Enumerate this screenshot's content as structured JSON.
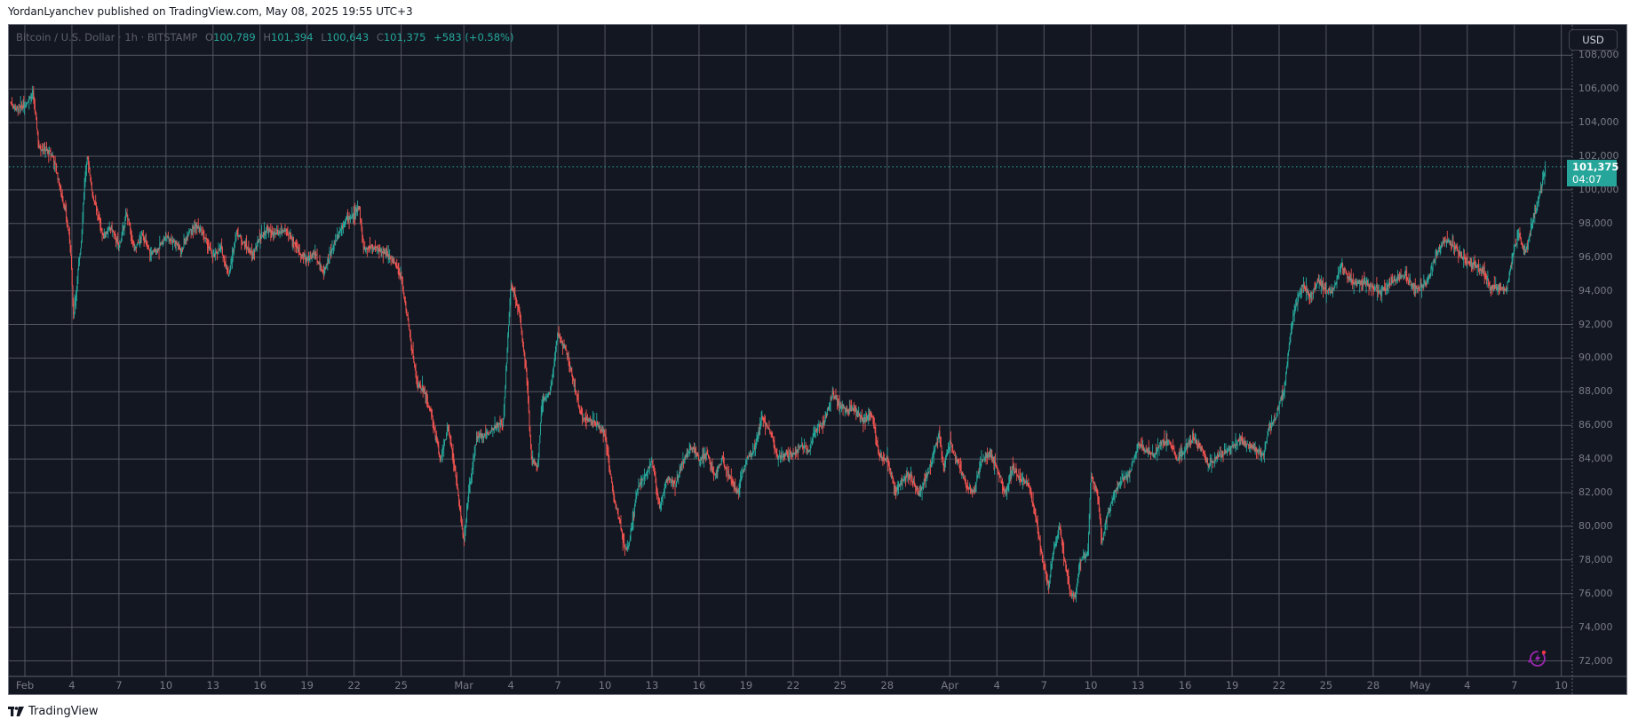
{
  "header": {
    "publisher_line": "YordanLyanchev published on TradingView.com, May 08, 2025 19:55 UTC+3"
  },
  "legend": {
    "symbol": "Bitcoin / U.S. Dollar · 1h · BITSTAMP",
    "open_label": "O",
    "open": "100,789",
    "high_label": "H",
    "high": "101,394",
    "low_label": "L",
    "low": "100,643",
    "close_label": "C",
    "close": "101,375",
    "change": "+583 (+0.58%)"
  },
  "currency_button": "USD",
  "last_price_tag": {
    "price": "101,375",
    "countdown": "04:07"
  },
  "footer": {
    "brand": "TradingView"
  },
  "colors": {
    "background": "#131722",
    "grid": "#5d606b",
    "up": "#26a69a",
    "down": "#ef5350",
    "axis_text": "#787b86",
    "last_price": "#26a69a"
  },
  "chart_data": {
    "type": "candlestick",
    "title": "Bitcoin / U.S. Dollar · 1h · BITSTAMP",
    "xlabel": "",
    "ylabel": "USD",
    "ylim": [
      71500,
      108500
    ],
    "grid": true,
    "y_ticks": [
      "72,000",
      "74,000",
      "76,000",
      "78,000",
      "80,000",
      "82,000",
      "84,000",
      "86,000",
      "88,000",
      "90,000",
      "92,000",
      "94,000",
      "96,000",
      "98,000",
      "100,000",
      "102,000",
      "104,000",
      "106,000",
      "108,000"
    ],
    "x_ticks": [
      {
        "label": "Feb",
        "day": 0
      },
      {
        "label": "4",
        "day": 3
      },
      {
        "label": "7",
        "day": 6
      },
      {
        "label": "10",
        "day": 9
      },
      {
        "label": "13",
        "day": 12
      },
      {
        "label": "16",
        "day": 15
      },
      {
        "label": "19",
        "day": 18
      },
      {
        "label": "22",
        "day": 21
      },
      {
        "label": "25",
        "day": 24
      },
      {
        "label": "Mar",
        "day": 28
      },
      {
        "label": "4",
        "day": 31
      },
      {
        "label": "7",
        "day": 34
      },
      {
        "label": "10",
        "day": 37
      },
      {
        "label": "13",
        "day": 40
      },
      {
        "label": "16",
        "day": 43
      },
      {
        "label": "19",
        "day": 46
      },
      {
        "label": "22",
        "day": 49
      },
      {
        "label": "25",
        "day": 52
      },
      {
        "label": "28",
        "day": 55
      },
      {
        "label": "Apr",
        "day": 59
      },
      {
        "label": "4",
        "day": 62
      },
      {
        "label": "7",
        "day": 65
      },
      {
        "label": "10",
        "day": 68
      },
      {
        "label": "13",
        "day": 71
      },
      {
        "label": "16",
        "day": 74
      },
      {
        "label": "19",
        "day": 77
      },
      {
        "label": "22",
        "day": 80
      },
      {
        "label": "25",
        "day": 83
      },
      {
        "label": "28",
        "day": 86
      },
      {
        "label": "May",
        "day": 89
      },
      {
        "label": "4",
        "day": 92
      },
      {
        "label": "7",
        "day": 95
      },
      {
        "label": "10",
        "day": 98
      }
    ],
    "last_price": 101375,
    "price_path_anchors": [
      [
        -0.9,
        105200
      ],
      [
        -0.5,
        104800
      ],
      [
        0,
        105000
      ],
      [
        0.5,
        105800
      ],
      [
        0.7,
        104300
      ],
      [
        0.9,
        102500
      ],
      [
        1.3,
        102400
      ],
      [
        1.8,
        102000
      ],
      [
        2.2,
        100300
      ],
      [
        2.6,
        98600
      ],
      [
        2.9,
        96800
      ],
      [
        3.1,
        92500
      ],
      [
        3.3,
        94300
      ],
      [
        3.6,
        97000
      ],
      [
        3.8,
        100500
      ],
      [
        4.0,
        102000
      ],
      [
        4.3,
        99800
      ],
      [
        4.6,
        98700
      ],
      [
        5.0,
        97200
      ],
      [
        5.5,
        97800
      ],
      [
        6.0,
        96600
      ],
      [
        6.5,
        98600
      ],
      [
        7.0,
        96400
      ],
      [
        7.5,
        97400
      ],
      [
        8.0,
        96200
      ],
      [
        8.5,
        96500
      ],
      [
        9.0,
        97200
      ],
      [
        9.5,
        97000
      ],
      [
        10.0,
        96400
      ],
      [
        10.5,
        97700
      ],
      [
        11.0,
        97800
      ],
      [
        11.5,
        97100
      ],
      [
        12.0,
        96000
      ],
      [
        12.5,
        96600
      ],
      [
        13.0,
        94900
      ],
      [
        13.5,
        97500
      ],
      [
        14.0,
        96800
      ],
      [
        14.5,
        96100
      ],
      [
        15.0,
        97200
      ],
      [
        15.5,
        97600
      ],
      [
        16.0,
        97300
      ],
      [
        16.5,
        97600
      ],
      [
        17.0,
        97200
      ],
      [
        17.5,
        96300
      ],
      [
        18.0,
        95800
      ],
      [
        18.5,
        96300
      ],
      [
        19.0,
        95000
      ],
      [
        19.5,
        96200
      ],
      [
        20.0,
        97400
      ],
      [
        20.5,
        98300
      ],
      [
        21.0,
        98400
      ],
      [
        21.3,
        99200
      ],
      [
        21.6,
        96500
      ],
      [
        22.0,
        96600
      ],
      [
        22.5,
        96500
      ],
      [
        23.0,
        96200
      ],
      [
        23.5,
        95800
      ],
      [
        24.0,
        94800
      ],
      [
        24.5,
        91800
      ],
      [
        25.0,
        88500
      ],
      [
        25.5,
        88000
      ],
      [
        26.0,
        86300
      ],
      [
        26.5,
        84000
      ],
      [
        27.0,
        85800
      ],
      [
        27.5,
        83000
      ],
      [
        28.0,
        79000
      ],
      [
        28.3,
        82000
      ],
      [
        28.8,
        85200
      ],
      [
        29.5,
        85500
      ],
      [
        30.0,
        86000
      ],
      [
        30.5,
        86000
      ],
      [
        31.0,
        94500
      ],
      [
        31.5,
        93000
      ],
      [
        32.0,
        89000
      ],
      [
        32.3,
        84000
      ],
      [
        32.7,
        83500
      ],
      [
        33.0,
        87500
      ],
      [
        33.5,
        88000
      ],
      [
        34.0,
        91500
      ],
      [
        34.5,
        90500
      ],
      [
        35.0,
        88500
      ],
      [
        35.5,
        86500
      ],
      [
        36.0,
        86300
      ],
      [
        36.5,
        86000
      ],
      [
        37.0,
        85500
      ],
      [
        37.5,
        82000
      ],
      [
        38.0,
        80000
      ],
      [
        38.3,
        78500
      ],
      [
        38.6,
        79300
      ],
      [
        39.0,
        82000
      ],
      [
        39.5,
        83000
      ],
      [
        40.0,
        83800
      ],
      [
        40.5,
        81200
      ],
      [
        41.0,
        83000
      ],
      [
        41.5,
        82500
      ],
      [
        42.0,
        84000
      ],
      [
        42.5,
        84700
      ],
      [
        43.0,
        84000
      ],
      [
        43.5,
        84300
      ],
      [
        44.0,
        83000
      ],
      [
        44.5,
        84000
      ],
      [
        45.0,
        82800
      ],
      [
        45.5,
        82000
      ],
      [
        46.0,
        84000
      ],
      [
        46.5,
        84500
      ],
      [
        47.0,
        86500
      ],
      [
        47.5,
        85800
      ],
      [
        48.0,
        84000
      ],
      [
        48.5,
        84300
      ],
      [
        49.0,
        84200
      ],
      [
        49.5,
        84800
      ],
      [
        50.0,
        84500
      ],
      [
        50.5,
        85900
      ],
      [
        51.0,
        86200
      ],
      [
        51.5,
        87900
      ],
      [
        52.0,
        87200
      ],
      [
        52.5,
        86800
      ],
      [
        53.0,
        86900
      ],
      [
        53.5,
        86200
      ],
      [
        54.0,
        86800
      ],
      [
        54.5,
        84200
      ],
      [
        55.0,
        84000
      ],
      [
        55.5,
        82200
      ],
      [
        56.0,
        82800
      ],
      [
        56.5,
        83000
      ],
      [
        57.0,
        81900
      ],
      [
        57.5,
        82900
      ],
      [
        58.0,
        84500
      ],
      [
        58.3,
        85600
      ],
      [
        58.6,
        83500
      ],
      [
        59.0,
        85000
      ],
      [
        59.5,
        83800
      ],
      [
        60.0,
        82600
      ],
      [
        60.5,
        82000
      ],
      [
        61.0,
        83800
      ],
      [
        61.5,
        84300
      ],
      [
        62.0,
        83500
      ],
      [
        62.5,
        82000
      ],
      [
        63.0,
        83500
      ],
      [
        63.5,
        82800
      ],
      [
        64.0,
        82500
      ],
      [
        64.5,
        80500
      ],
      [
        65.0,
        77500
      ],
      [
        65.3,
        76500
      ],
      [
        65.6,
        78500
      ],
      [
        66.0,
        80000
      ],
      [
        66.3,
        78000
      ],
      [
        66.7,
        76000
      ],
      [
        67.0,
        75800
      ],
      [
        67.3,
        78000
      ],
      [
        67.8,
        78500
      ],
      [
        68.0,
        83000
      ],
      [
        68.4,
        82000
      ],
      [
        68.7,
        79000
      ],
      [
        69.0,
        80500
      ],
      [
        69.5,
        82000
      ],
      [
        70.0,
        82800
      ],
      [
        70.5,
        83300
      ],
      [
        71.0,
        84800
      ],
      [
        71.5,
        84500
      ],
      [
        72.0,
        84200
      ],
      [
        72.5,
        85000
      ],
      [
        73.0,
        85000
      ],
      [
        73.5,
        84000
      ],
      [
        74.0,
        84600
      ],
      [
        74.5,
        85300
      ],
      [
        75.0,
        84700
      ],
      [
        75.5,
        83600
      ],
      [
        76.0,
        84100
      ],
      [
        76.5,
        84400
      ],
      [
        77.0,
        84700
      ],
      [
        77.5,
        85100
      ],
      [
        78.0,
        84800
      ],
      [
        78.5,
        84600
      ],
      [
        79.0,
        84200
      ],
      [
        79.3,
        85700
      ],
      [
        79.8,
        86500
      ],
      [
        80.0,
        87300
      ],
      [
        80.3,
        88000
      ],
      [
        80.6,
        90500
      ],
      [
        80.9,
        92500
      ],
      [
        81.2,
        93500
      ],
      [
        81.5,
        94400
      ],
      [
        82.0,
        93700
      ],
      [
        82.5,
        94600
      ],
      [
        83.0,
        94000
      ],
      [
        83.5,
        94200
      ],
      [
        84.0,
        95500
      ],
      [
        84.5,
        94600
      ],
      [
        85.0,
        94300
      ],
      [
        85.5,
        94500
      ],
      [
        86.0,
        94200
      ],
      [
        86.5,
        93900
      ],
      [
        87.0,
        94400
      ],
      [
        87.5,
        94700
      ],
      [
        88.0,
        95000
      ],
      [
        88.5,
        94300
      ],
      [
        89.0,
        94200
      ],
      [
        89.5,
        94600
      ],
      [
        90.0,
        96200
      ],
      [
        90.5,
        97000
      ],
      [
        91.0,
        96800
      ],
      [
        91.5,
        96200
      ],
      [
        92.0,
        95800
      ],
      [
        92.5,
        95500
      ],
      [
        93.0,
        95200
      ],
      [
        93.5,
        94200
      ],
      [
        94.0,
        94200
      ],
      [
        94.5,
        94100
      ],
      [
        95.0,
        96500
      ],
      [
        95.3,
        97300
      ],
      [
        95.7,
        96200
      ],
      [
        96.0,
        97300
      ],
      [
        96.3,
        98800
      ],
      [
        96.6,
        99600
      ],
      [
        96.9,
        101000
      ],
      [
        97.0,
        101375
      ]
    ]
  }
}
